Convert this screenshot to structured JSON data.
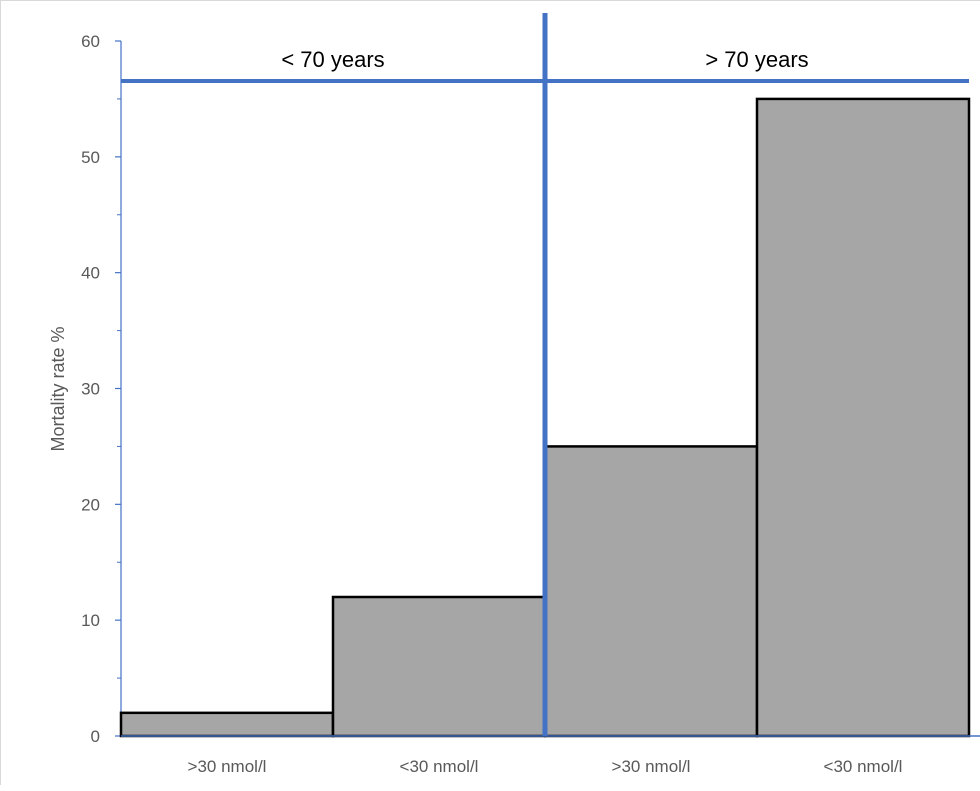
{
  "chart_data": {
    "type": "bar",
    "title": "",
    "xlabel": "",
    "ylabel": "Mortality rate %",
    "ylim": [
      0,
      60
    ],
    "y_ticks": [
      0,
      10,
      20,
      30,
      40,
      50,
      60
    ],
    "categories": [
      ">30 nmol/l",
      "<30 nmol/l",
      ">30 nmol/l",
      "<30 nmol/l"
    ],
    "values": [
      2,
      12,
      25,
      55
    ],
    "groups": [
      {
        "label": "< 70 years",
        "categories": [
          0,
          1
        ]
      },
      {
        "label": "> 70 years",
        "categories": [
          2,
          3
        ]
      }
    ],
    "bar_color": "#a6a6a7",
    "bar_edge_color": "#000000",
    "divider_color": "#4472c4",
    "axis_color": "#4472c4",
    "grid": false,
    "legend": "none"
  }
}
